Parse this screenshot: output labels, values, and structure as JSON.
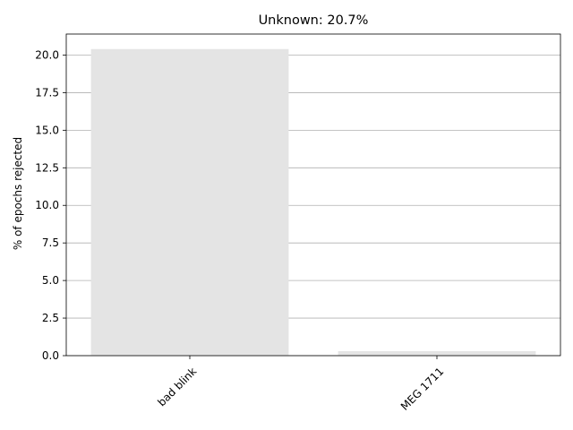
{
  "chart_data": {
    "type": "bar",
    "title": "Unknown: 20.7%",
    "xlabel": "",
    "ylabel": "% of epochs rejected",
    "categories": [
      "bad blink",
      "MEG 1711"
    ],
    "values": [
      20.4,
      0.3
    ],
    "ylim": [
      0,
      21.4
    ],
    "yticks": [
      0.0,
      2.5,
      5.0,
      7.5,
      10.0,
      12.5,
      15.0,
      17.5,
      20.0
    ],
    "ytick_labels": [
      "0.0",
      "2.5",
      "5.0",
      "7.5",
      "10.0",
      "12.5",
      "15.0",
      "17.5",
      "20.0"
    ],
    "x_tick_rotation": 45,
    "grid": "horizontal",
    "legend": "none",
    "colors": {
      "bar": "#e4e4e4",
      "grid": "#b0b0b0",
      "axis": "#000000",
      "background": "#ffffff"
    }
  }
}
